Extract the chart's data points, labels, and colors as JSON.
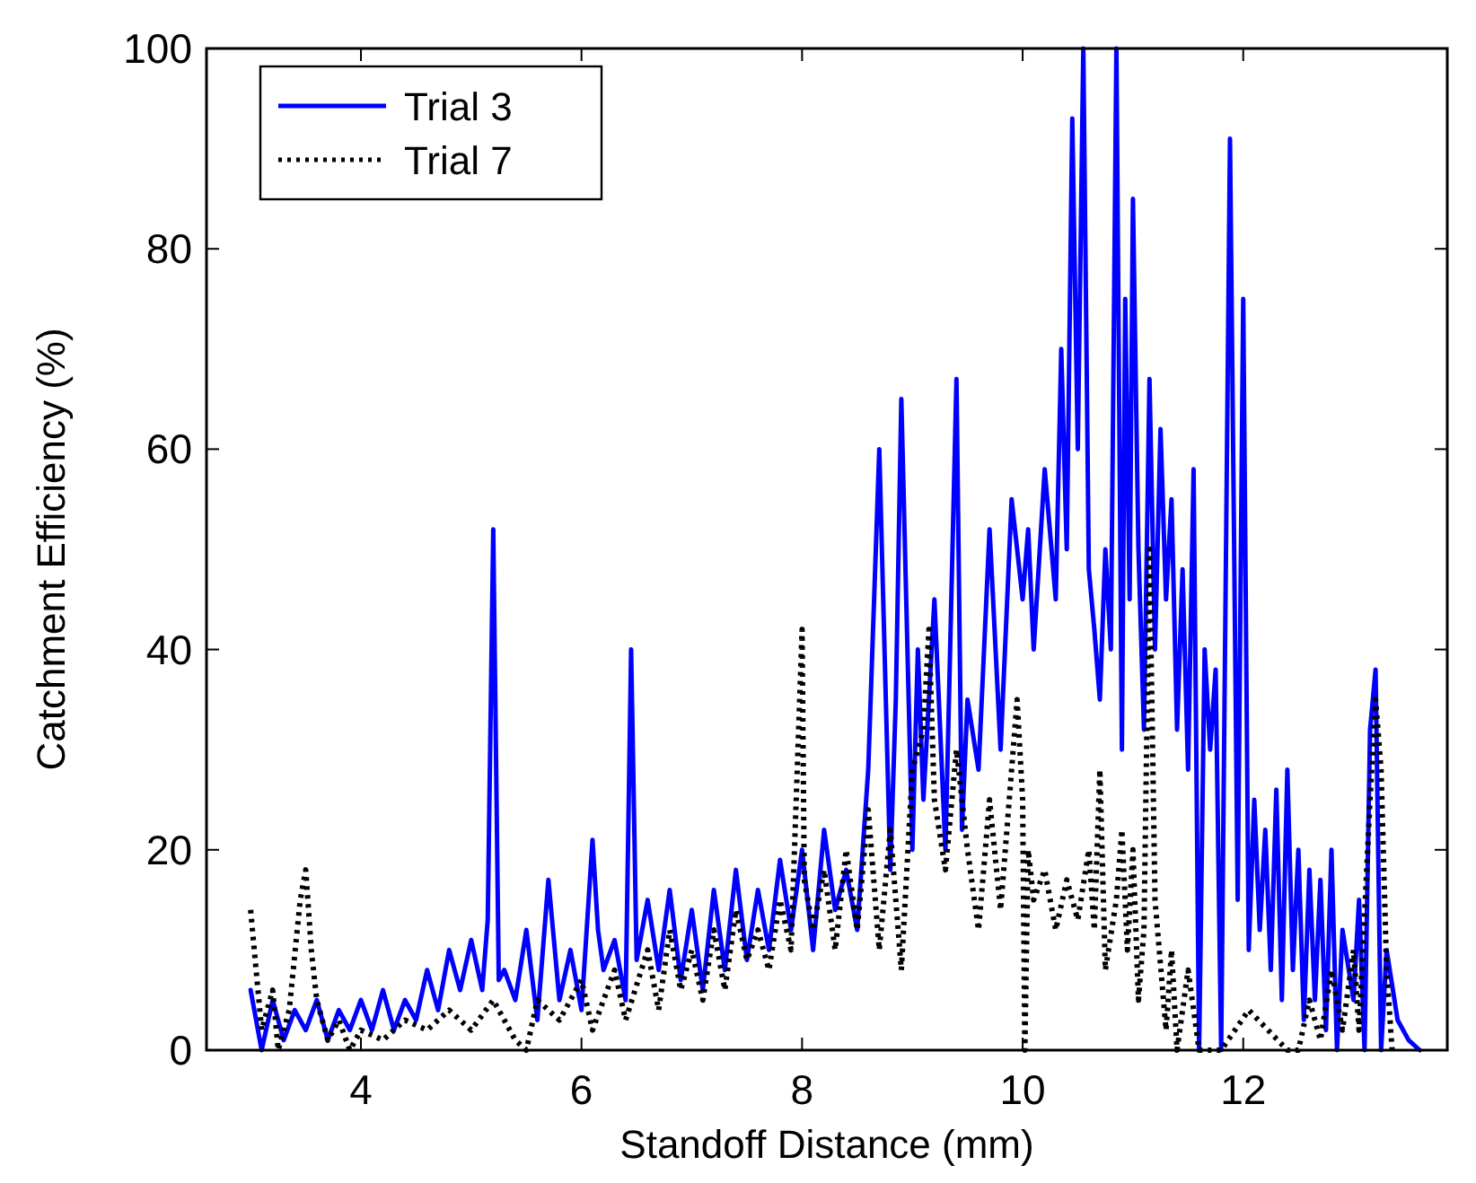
{
  "chart_data": {
    "type": "line",
    "xlabel": "Standoff Distance (mm)",
    "ylabel": "Catchment Efficiency (%)",
    "xlim": [
      2.6,
      13.85
    ],
    "xticks": [
      4,
      6,
      8,
      10,
      12
    ],
    "ylim": [
      0,
      100
    ],
    "yticks": [
      0,
      20,
      40,
      60,
      80,
      100
    ],
    "grid": false,
    "legend": "top left",
    "series": [
      {
        "name": "Trial 3",
        "color": "#0000ff",
        "line_style": "solid",
        "x": [
          3.0,
          3.1,
          3.2,
          3.3,
          3.4,
          3.5,
          3.6,
          3.7,
          3.8,
          3.9,
          4.0,
          4.1,
          4.2,
          4.3,
          4.4,
          4.5,
          4.6,
          4.7,
          4.8,
          4.9,
          5.0,
          5.1,
          5.15,
          5.2,
          5.25,
          5.3,
          5.4,
          5.5,
          5.6,
          5.7,
          5.8,
          5.9,
          6.0,
          6.1,
          6.15,
          6.2,
          6.3,
          6.4,
          6.45,
          6.5,
          6.6,
          6.7,
          6.8,
          6.9,
          7.0,
          7.1,
          7.2,
          7.3,
          7.4,
          7.5,
          7.6,
          7.7,
          7.8,
          7.9,
          8.0,
          8.1,
          8.2,
          8.3,
          8.4,
          8.5,
          8.6,
          8.7,
          8.8,
          8.85,
          8.9,
          9.0,
          9.05,
          9.1,
          9.2,
          9.3,
          9.4,
          9.45,
          9.5,
          9.6,
          9.7,
          9.8,
          9.9,
          10.0,
          10.05,
          10.1,
          10.2,
          10.3,
          10.35,
          10.4,
          10.45,
          10.5,
          10.55,
          10.6,
          10.65,
          10.7,
          10.75,
          10.8,
          10.85,
          10.9,
          10.93,
          10.97,
          11.0,
          11.05,
          11.1,
          11.15,
          11.2,
          11.25,
          11.3,
          11.35,
          11.4,
          11.45,
          11.5,
          11.55,
          11.6,
          11.65,
          11.7,
          11.75,
          11.8,
          11.88,
          11.95,
          12.0,
          12.05,
          12.1,
          12.15,
          12.2,
          12.25,
          12.3,
          12.35,
          12.4,
          12.45,
          12.5,
          12.55,
          12.6,
          12.65,
          12.7,
          12.75,
          12.8,
          12.85,
          12.9,
          13.0,
          13.05,
          13.1,
          13.15,
          13.2,
          13.25,
          13.3,
          13.4,
          13.5,
          13.6
        ],
        "values": [
          6,
          0,
          5,
          1,
          4,
          2,
          5,
          1,
          4,
          2,
          5,
          2,
          6,
          2,
          5,
          3,
          8,
          4,
          10,
          6,
          11,
          6,
          13,
          52,
          7,
          8,
          5,
          12,
          3,
          17,
          5,
          10,
          4,
          21,
          12,
          8,
          11,
          5,
          40,
          9,
          15,
          8,
          16,
          7,
          14,
          6,
          16,
          8,
          18,
          9,
          16,
          10,
          19,
          12,
          20,
          10,
          22,
          14,
          18,
          12,
          28,
          60,
          18,
          35,
          65,
          20,
          40,
          25,
          45,
          20,
          67,
          22,
          35,
          28,
          52,
          30,
          55,
          45,
          52,
          40,
          58,
          45,
          70,
          50,
          93,
          60,
          100,
          48,
          42,
          35,
          50,
          40,
          100,
          30,
          75,
          45,
          85,
          50,
          32,
          67,
          40,
          62,
          45,
          55,
          32,
          48,
          28,
          58,
          0,
          40,
          30,
          38,
          0,
          91,
          15,
          75,
          10,
          25,
          12,
          22,
          8,
          26,
          5,
          28,
          8,
          20,
          3,
          18,
          5,
          17,
          2,
          20,
          0,
          12,
          5,
          15,
          0,
          32,
          38,
          0,
          10,
          3,
          1,
          0
        ]
      },
      {
        "name": "Trial 7",
        "color": "#000000",
        "line_style": "dotted",
        "x": [
          3.0,
          3.05,
          3.1,
          3.2,
          3.25,
          3.35,
          3.45,
          3.5,
          3.55,
          3.6,
          3.7,
          3.8,
          3.9,
          4.0,
          4.2,
          4.4,
          4.6,
          4.8,
          5.0,
          5.2,
          5.4,
          5.5,
          5.6,
          5.8,
          6.0,
          6.1,
          6.3,
          6.4,
          6.6,
          6.7,
          6.8,
          6.9,
          7.0,
          7.1,
          7.2,
          7.3,
          7.4,
          7.5,
          7.6,
          7.7,
          7.8,
          7.9,
          8.0,
          8.02,
          8.1,
          8.2,
          8.3,
          8.4,
          8.5,
          8.6,
          8.7,
          8.8,
          8.9,
          9.0,
          9.1,
          9.15,
          9.2,
          9.3,
          9.4,
          9.5,
          9.6,
          9.7,
          9.8,
          9.9,
          9.95,
          10.0,
          10.02,
          10.05,
          10.1,
          10.2,
          10.3,
          10.4,
          10.5,
          10.6,
          10.65,
          10.7,
          10.75,
          10.85,
          10.9,
          10.95,
          11.0,
          11.05,
          11.1,
          11.15,
          11.2,
          11.3,
          11.35,
          11.4,
          11.5,
          11.6,
          11.8,
          12.05,
          12.4,
          12.5,
          12.6,
          12.7,
          12.8,
          12.9,
          13.0,
          13.05,
          13.15,
          13.2,
          13.25,
          13.3,
          13.35
        ],
        "values": [
          14,
          8,
          2,
          6,
          0,
          4,
          15,
          18,
          10,
          5,
          1,
          3,
          0,
          2,
          1,
          3,
          2,
          4,
          2,
          5,
          1,
          0,
          5,
          3,
          7,
          2,
          8,
          3,
          10,
          4,
          12,
          6,
          10,
          5,
          12,
          6,
          14,
          9,
          12,
          8,
          15,
          10,
          42,
          17,
          12,
          18,
          10,
          20,
          12,
          24,
          10,
          22,
          8,
          28,
          32,
          42,
          25,
          18,
          30,
          20,
          12,
          25,
          14,
          28,
          35,
          25,
          0,
          20,
          15,
          18,
          12,
          17,
          13,
          20,
          12,
          28,
          8,
          15,
          22,
          10,
          20,
          5,
          12,
          50,
          15,
          2,
          10,
          0,
          8,
          0,
          0,
          4,
          0,
          0,
          5,
          1,
          8,
          2,
          10,
          2,
          25,
          35,
          28,
          8,
          0
        ]
      }
    ]
  }
}
